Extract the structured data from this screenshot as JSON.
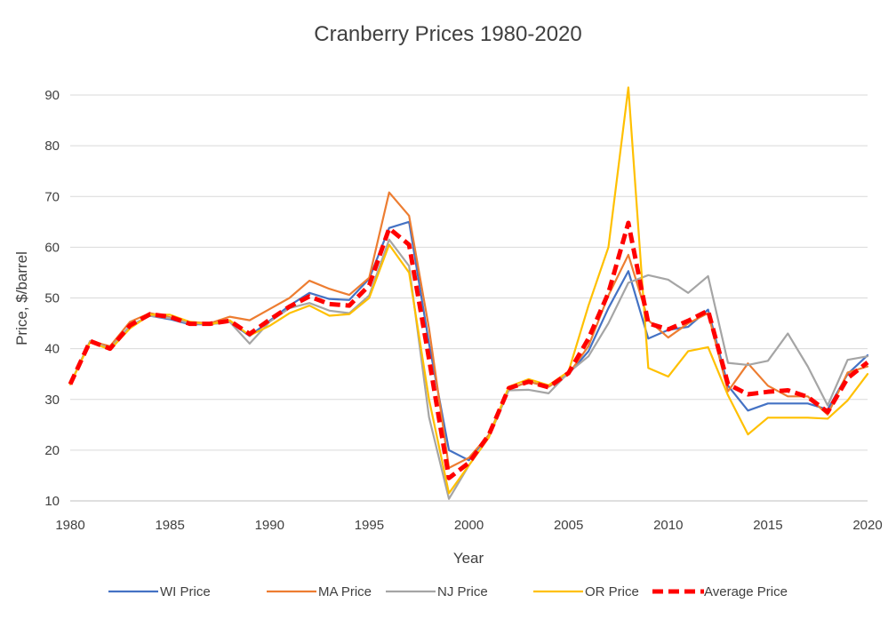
{
  "chart_data": {
    "type": "line",
    "title": "Cranberry Prices 1980-2020",
    "xlabel": "Year",
    "ylabel": "Price, $/barrel",
    "xlim": [
      1980,
      2020
    ],
    "ylim": [
      10,
      95
    ],
    "x_ticks": [
      "1980",
      "1985",
      "1990",
      "1995",
      "2000",
      "2005",
      "2010",
      "2015",
      "2020"
    ],
    "y_ticks": [
      "10",
      "20",
      "30",
      "40",
      "50",
      "60",
      "70",
      "80",
      "90"
    ],
    "grid": "horizontal",
    "legend_position": "bottom",
    "x": [
      1980,
      1981,
      1982,
      1983,
      1984,
      1985,
      1986,
      1987,
      1988,
      1989,
      1990,
      1991,
      1992,
      1993,
      1994,
      1995,
      1996,
      1997,
      1998,
      1999,
      2000,
      2001,
      2002,
      2003,
      2004,
      2005,
      2006,
      2007,
      2008,
      2009,
      2010,
      2011,
      2012,
      2013,
      2014,
      2015,
      2016,
      2017,
      2018,
      2019,
      2020
    ],
    "series": [
      {
        "name": "WI Price",
        "color": "#4472C4",
        "style": "solid",
        "values": [
          33.0,
          41.5,
          40.0,
          44.5,
          46.5,
          45.8,
          44.8,
          44.8,
          45.3,
          42.5,
          45.5,
          48.5,
          51.0,
          49.8,
          49.6,
          53.8,
          63.8,
          65.0,
          41.0,
          20.0,
          18.0,
          23.0,
          32.0,
          33.5,
          32.5,
          35.0,
          39.5,
          48.0,
          55.3,
          42.0,
          43.7,
          44.3,
          47.7,
          32.7,
          27.8,
          29.2,
          29.2,
          29.2,
          28.0,
          35.0,
          38.7
        ]
      },
      {
        "name": "MA Price",
        "color": "#ED7D31",
        "style": "solid",
        "values": [
          33.0,
          41.5,
          40.5,
          45.3,
          47.0,
          46.2,
          45.3,
          45.0,
          46.3,
          45.6,
          47.8,
          50.0,
          53.4,
          51.8,
          50.6,
          54.0,
          70.8,
          66.2,
          44.0,
          16.5,
          18.5,
          23.0,
          32.0,
          33.5,
          32.5,
          35.0,
          40.5,
          50.5,
          58.5,
          45.6,
          42.2,
          45.0,
          47.0,
          31.6,
          37.1,
          32.7,
          30.6,
          30.6,
          27.0,
          35.3,
          36.5
        ]
      },
      {
        "name": "NJ Price",
        "color": "#A5A5A5",
        "style": "solid",
        "values": [
          33.0,
          41.5,
          40.0,
          44.5,
          46.5,
          46.0,
          45.0,
          44.8,
          45.3,
          41.0,
          45.3,
          48.0,
          49.0,
          47.5,
          47.0,
          50.5,
          61.5,
          56.3,
          26.5,
          10.4,
          17.0,
          22.5,
          31.8,
          31.9,
          31.2,
          35.3,
          38.5,
          45.0,
          53.0,
          54.5,
          53.6,
          51.0,
          54.3,
          37.2,
          36.8,
          37.6,
          43.0,
          36.5,
          28.8,
          37.8,
          38.5
        ]
      },
      {
        "name": "OR Price",
        "color": "#FFC000",
        "style": "solid",
        "values": [
          33.0,
          41.3,
          39.8,
          44.0,
          46.7,
          46.7,
          45.3,
          44.8,
          45.6,
          42.6,
          44.5,
          47.0,
          48.5,
          46.5,
          46.8,
          50.0,
          60.5,
          55.0,
          30.0,
          11.5,
          17.0,
          22.5,
          32.5,
          34.0,
          32.8,
          35.5,
          48.5,
          60.0,
          91.5,
          36.2,
          34.5,
          39.5,
          40.3,
          30.8,
          23.1,
          26.4,
          26.4,
          26.4,
          26.2,
          29.8,
          35.0
        ]
      },
      {
        "name": "Average Price",
        "color": "#FF0000",
        "style": "dashed",
        "values": [
          33.0,
          41.5,
          40.0,
          44.6,
          46.8,
          46.3,
          44.9,
          44.9,
          45.5,
          42.9,
          45.7,
          48.3,
          50.3,
          48.8,
          48.5,
          52.5,
          63.7,
          60.5,
          38.0,
          14.5,
          17.5,
          23.0,
          32.2,
          33.5,
          32.4,
          35.2,
          42.0,
          51.0,
          64.8,
          45.0,
          43.8,
          45.5,
          47.5,
          33.0,
          31.0,
          31.5,
          31.8,
          30.5,
          27.5,
          34.2,
          37.3
        ]
      }
    ]
  }
}
